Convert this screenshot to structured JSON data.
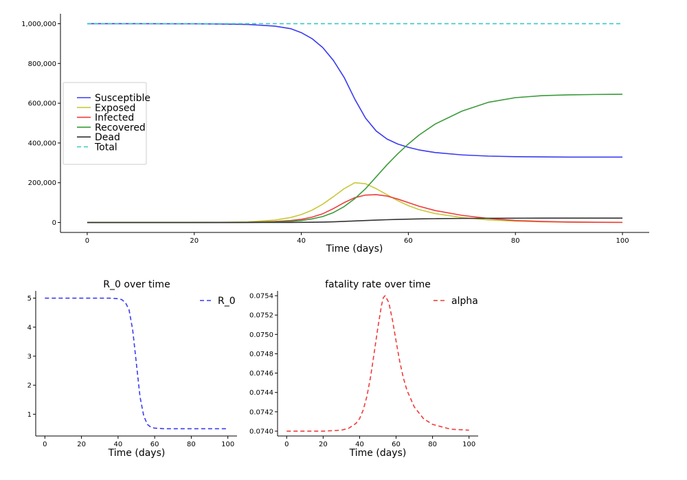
{
  "chart_data": [
    {
      "id": "seir",
      "type": "line",
      "title": "",
      "xlabel": "Time (days)",
      "ylabel": "",
      "xlim": [
        -5,
        105
      ],
      "ylim": [
        -50000,
        1050000
      ],
      "xticks": [
        0,
        20,
        40,
        60,
        80,
        100
      ],
      "yticks": [
        0,
        200000,
        400000,
        600000,
        800000,
        1000000
      ],
      "xtick_labels": [
        "0",
        "20",
        "40",
        "60",
        "80",
        "100"
      ],
      "ytick_labels": [
        "0",
        "200,000",
        "400,000",
        "600,000",
        "800,000",
        "1,000,000"
      ],
      "legend_position": "center-left",
      "x": [
        0,
        10,
        20,
        25,
        30,
        35,
        38,
        40,
        42,
        44,
        46,
        48,
        50,
        52,
        54,
        56,
        58,
        60,
        62,
        65,
        70,
        75,
        80,
        85,
        90,
        95,
        100
      ],
      "series": [
        {
          "name": "Susceptible",
          "color": "#3a3af0",
          "dashed": false,
          "values": [
            1000000,
            1000000,
            999500,
            998500,
            996000,
            988000,
            975000,
            955000,
            925000,
            880000,
            815000,
            730000,
            620000,
            525000,
            460000,
            420000,
            395000,
            378000,
            365000,
            352000,
            340000,
            334000,
            331000,
            330000,
            329000,
            329000,
            329000
          ]
        },
        {
          "name": "Exposed",
          "color": "#c8c83a",
          "dashed": false,
          "values": [
            0,
            0,
            300,
            1000,
            3000,
            12000,
            25000,
            40000,
            62000,
            92000,
            130000,
            170000,
            200000,
            195000,
            170000,
            140000,
            110000,
            85000,
            65000,
            45000,
            25000,
            13000,
            7000,
            3500,
            1800,
            900,
            500
          ]
        },
        {
          "name": "Infected",
          "color": "#f03a3a",
          "dashed": false,
          "values": [
            0,
            0,
            100,
            400,
            1200,
            5000,
            10000,
            16000,
            27000,
            44000,
            70000,
            100000,
            125000,
            138000,
            140000,
            133000,
            118000,
            100000,
            82000,
            60000,
            36000,
            20000,
            10000,
            5000,
            2500,
            1200,
            600
          ]
        },
        {
          "name": "Recovered",
          "color": "#3a9a3a",
          "dashed": false,
          "values": [
            0,
            0,
            100,
            300,
            1000,
            3000,
            6000,
            10000,
            18000,
            30000,
            50000,
            80000,
            120000,
            170000,
            230000,
            290000,
            345000,
            395000,
            440000,
            495000,
            560000,
            605000,
            628000,
            638000,
            642000,
            644000,
            645000
          ]
        },
        {
          "name": "Dead",
          "color": "#333333",
          "dashed": false,
          "values": [
            0,
            0,
            0,
            50,
            100,
            250,
            500,
            800,
            1300,
            2100,
            3500,
            5500,
            7800,
            10000,
            12000,
            14000,
            15500,
            16800,
            18000,
            19200,
            20500,
            21300,
            21700,
            21900,
            22000,
            22000,
            22000
          ]
        },
        {
          "name": "Total",
          "color": "#3ac8c8",
          "dashed": true,
          "values": [
            1000000,
            1000000,
            1000000,
            1000000,
            1000000,
            1000000,
            1000000,
            1000000,
            1000000,
            1000000,
            1000000,
            1000000,
            1000000,
            1000000,
            1000000,
            1000000,
            1000000,
            1000000,
            1000000,
            1000000,
            1000000,
            1000000,
            1000000,
            1000000,
            1000000,
            1000000,
            1000000
          ]
        }
      ]
    },
    {
      "id": "r0",
      "type": "line",
      "title": "R_0 over time",
      "xlabel": "Time (days)",
      "ylabel": "",
      "xlim": [
        -5,
        105
      ],
      "ylim": [
        0.25,
        5.25
      ],
      "xticks": [
        0,
        20,
        40,
        60,
        80,
        100
      ],
      "yticks": [
        1,
        2,
        3,
        4,
        5
      ],
      "xtick_labels": [
        "0",
        "20",
        "40",
        "60",
        "80",
        "100"
      ],
      "ytick_labels": [
        "1",
        "2",
        "3",
        "4",
        "5"
      ],
      "legend_position": "top-right",
      "x": [
        0,
        10,
        20,
        30,
        35,
        40,
        42,
        44,
        46,
        48,
        50,
        52,
        54,
        56,
        58,
        60,
        65,
        70,
        80,
        90,
        100
      ],
      "series": [
        {
          "name": "R_0",
          "color": "#3a3af0",
          "dashed": true,
          "values": [
            5.0,
            5.0,
            5.0,
            5.0,
            5.0,
            4.98,
            4.95,
            4.85,
            4.6,
            3.9,
            2.75,
            1.6,
            0.95,
            0.65,
            0.55,
            0.52,
            0.5,
            0.5,
            0.5,
            0.5,
            0.5
          ]
        }
      ]
    },
    {
      "id": "alpha",
      "type": "line",
      "title": "fatality rate over time",
      "xlabel": "Time (days)",
      "ylabel": "",
      "xlim": [
        -5,
        105
      ],
      "ylim": [
        0.07395,
        0.07545
      ],
      "xticks": [
        0,
        20,
        40,
        60,
        80,
        100
      ],
      "yticks": [
        0.074,
        0.0742,
        0.0744,
        0.0746,
        0.0748,
        0.075,
        0.0752,
        0.0754
      ],
      "xtick_labels": [
        "0",
        "20",
        "40",
        "60",
        "80",
        "100"
      ],
      "ytick_labels": [
        "0.0740",
        "0.0742",
        "0.0744",
        "0.0746",
        "0.0748",
        "0.0750",
        "0.0752",
        "0.0754"
      ],
      "legend_position": "top-right",
      "x": [
        0,
        20,
        30,
        34,
        38,
        40,
        42,
        44,
        46,
        48,
        50,
        52,
        53,
        54,
        56,
        58,
        60,
        62,
        64,
        66,
        70,
        75,
        80,
        90,
        100
      ],
      "series": [
        {
          "name": "alpha",
          "color": "#f03a3a",
          "dashed": true,
          "values": [
            0.074,
            0.074,
            0.07401,
            0.07403,
            0.07408,
            0.07413,
            0.07422,
            0.07436,
            0.07456,
            0.07481,
            0.07507,
            0.0753,
            0.07538,
            0.0754,
            0.07533,
            0.07515,
            0.07493,
            0.07472,
            0.07455,
            0.07442,
            0.07425,
            0.07413,
            0.07407,
            0.07402,
            0.07401
          ]
        }
      ]
    }
  ]
}
